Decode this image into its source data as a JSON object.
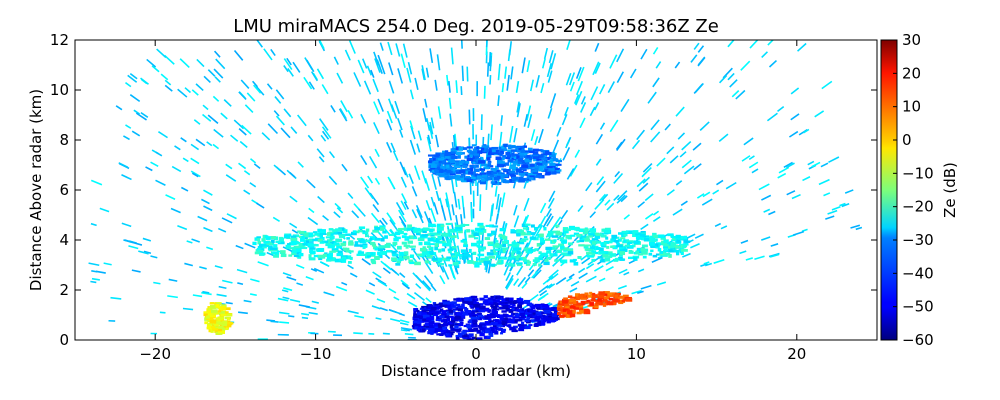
{
  "chart_data": {
    "type": "heatmap",
    "subtype": "radar RHI scan (reflectivity)",
    "title": "LMU miraMACS 254.0 Deg. 2019-05-29T09:58:36Z  Ze",
    "xlabel": "Distance from radar (km)",
    "ylabel": "Distance Above radar  (km)",
    "xlim": [
      -25,
      25
    ],
    "ylim": [
      0,
      12
    ],
    "xticks": [
      -20,
      -10,
      0,
      10,
      20
    ],
    "yticks": [
      0,
      2,
      4,
      6,
      8,
      10,
      12
    ],
    "grid": false,
    "colorbar": {
      "label": "Ze (dB)",
      "range": [
        -60,
        30
      ],
      "ticks": [
        30,
        20,
        10,
        0,
        -10,
        -20,
        -30,
        -40,
        -50,
        -60
      ],
      "colormap": "jet"
    },
    "scan_max_range_km": 24.5,
    "scan_min_elevation_deg": 10,
    "features": [
      {
        "name": "sparse noise field (sky)",
        "ze_db": -30
      },
      {
        "name": "cloud layer",
        "x_range_km": [
          -14,
          13
        ],
        "z_range_km": [
          3.0,
          4.7
        ],
        "ze_db": -25
      },
      {
        "name": "thin upper streak",
        "x_range_km": [
          -3,
          5
        ],
        "z_range_km": [
          6.3,
          7.9
        ],
        "ze_db": -38
      },
      {
        "name": "near-ground clutter",
        "x_range_km": [
          -4,
          5
        ],
        "z_range_km": [
          0.0,
          1.8
        ],
        "ze_db": -50
      },
      {
        "name": "strong ground echo",
        "x_range_km": [
          5,
          10
        ],
        "z_range_km": [
          0.6,
          2.0
        ],
        "ze_db": 12
      },
      {
        "name": "isolated echo",
        "x_range_km": [
          -17,
          -15.5
        ],
        "z_range_km": [
          0.3,
          1.6
        ],
        "ze_db": -5
      }
    ]
  }
}
